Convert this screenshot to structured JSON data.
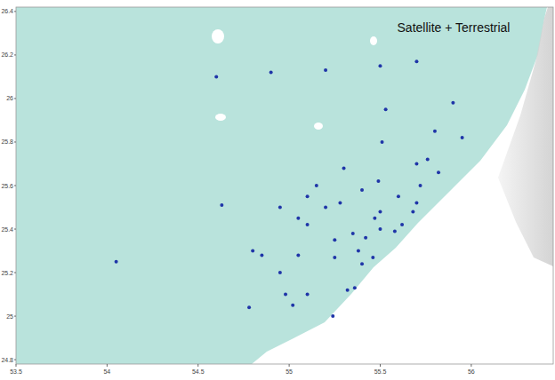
{
  "chart_data": {
    "type": "scatter",
    "title": "Satellite + Terrestrial",
    "x": [
      55.24,
      55.32,
      55.4,
      55.5,
      55.6,
      55.7,
      55.8,
      55.9,
      55.46,
      55.47,
      55.49,
      55.51,
      55.53,
      55.58,
      55.7,
      55.82,
      55.95,
      54.95,
      55.1,
      55.25,
      55.38,
      54.85,
      55.05,
      55.25,
      55.1,
      54.95,
      54.8,
      55.5,
      55.4,
      55.3,
      54.6,
      54.9,
      55.2,
      55.5,
      55.7,
      55.1,
      55.15,
      55.2,
      55.28,
      55.05,
      54.98,
      55.02,
      54.78,
      55.68,
      55.72,
      55.76,
      54.63,
      54.05,
      55.36,
      55.62,
      55.42,
      55.35
    ],
    "values": [
      25.0,
      25.12,
      25.24,
      25.4,
      25.55,
      25.7,
      25.85,
      25.98,
      25.27,
      25.45,
      25.62,
      25.8,
      25.95,
      25.39,
      25.52,
      25.66,
      25.82,
      25.5,
      25.42,
      25.35,
      25.3,
      25.28,
      25.28,
      25.27,
      25.1,
      25.2,
      25.3,
      25.48,
      25.58,
      25.68,
      26.1,
      26.12,
      26.13,
      26.15,
      26.17,
      25.55,
      25.6,
      25.5,
      25.52,
      25.45,
      25.1,
      25.05,
      25.04,
      25.48,
      25.6,
      25.72,
      25.51,
      25.25,
      25.13,
      25.42,
      25.36,
      25.38
    ],
    "color": "#1f35a8",
    "marker": "circle",
    "grid": false,
    "xlim": [
      53.5,
      56.45
    ],
    "ylim": [
      24.78,
      26.42
    ],
    "xticks": [
      53.5,
      54,
      54.5,
      55,
      55.5,
      56
    ],
    "yticks": [
      24.8,
      25,
      25.2,
      25.4,
      25.6,
      25.8,
      26,
      26.2,
      26.4
    ]
  }
}
